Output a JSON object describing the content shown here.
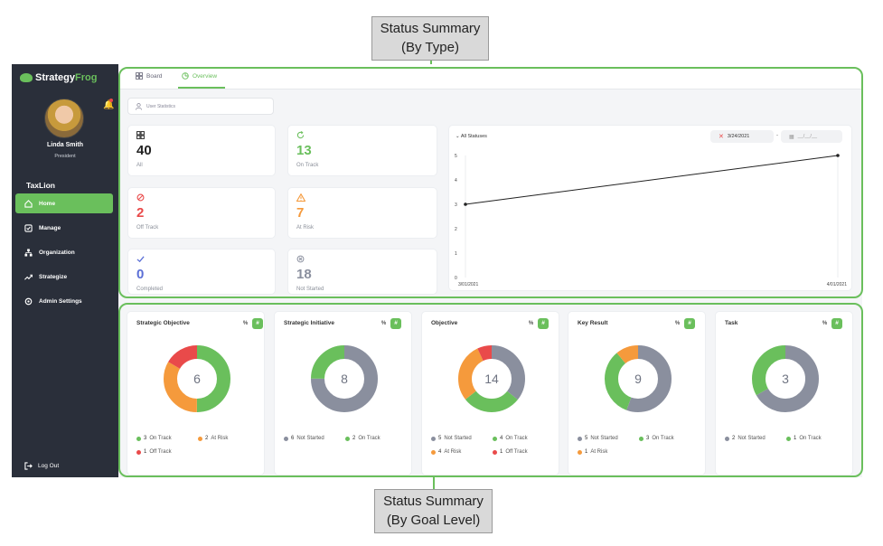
{
  "callouts": {
    "top": [
      "Status Summary",
      "(By Type)"
    ],
    "bottom": [
      "Status Summary",
      "(By Goal Level)"
    ]
  },
  "colors": {
    "accent": "#6abf5c",
    "on_track": "#6abf5c",
    "at_risk": "#f59a3c",
    "off_track": "#e94a4a",
    "completed": "#5b6fd6",
    "not_started": "#8a8f9e"
  },
  "app": {
    "logo_a": "Strategy",
    "logo_b": "Frog"
  },
  "user": {
    "name": "Linda Smith",
    "role": "President"
  },
  "sidebar": {
    "org": "TaxLion",
    "items": [
      {
        "label": "Home",
        "icon": "home-icon"
      },
      {
        "label": "Manage",
        "icon": "checkbox-icon"
      },
      {
        "label": "Organization",
        "icon": "org-chart-icon"
      },
      {
        "label": "Strategize",
        "icon": "trend-icon"
      },
      {
        "label": "Admin Settings",
        "icon": "gear-icon"
      }
    ],
    "logout": "Log Out"
  },
  "tabs": [
    {
      "label": "Board",
      "icon": "grid-icon"
    },
    {
      "label": "Overview",
      "icon": "chart-icon"
    }
  ],
  "user_stats_label": "User Statistics",
  "stats": [
    {
      "value": "40",
      "label": "All",
      "icon": "grid-icon"
    },
    {
      "value": "13",
      "label": "On Track",
      "icon": "refresh-icon"
    },
    {
      "value": "2",
      "label": "Off Track",
      "icon": "ban-icon"
    },
    {
      "value": "7",
      "label": "At Risk",
      "icon": "warning-icon"
    },
    {
      "value": "0",
      "label": "Completed",
      "icon": "check-icon"
    },
    {
      "value": "18",
      "label": "Not Started",
      "icon": "x-circle-icon"
    }
  ],
  "line_chart": {
    "filter_label": "All Statuses",
    "date_from": "3/24/2021",
    "date_sep": "-",
    "date_to_placeholder": "__/__/__"
  },
  "chart_data": [
    {
      "type": "line",
      "x": [
        "3/01/2021",
        "4/01/2021"
      ],
      "series": [
        {
          "values": [
            3,
            5
          ]
        }
      ],
      "ylim": [
        0,
        5
      ],
      "yticks": [
        0,
        1,
        2,
        3,
        4,
        5
      ],
      "grid": false
    },
    {
      "type": "pie",
      "title": "Strategic Objective",
      "total": "6",
      "slices": [
        {
          "label": "On Track",
          "value": 3
        },
        {
          "label": "At Risk",
          "value": 2
        },
        {
          "label": "Off Track",
          "value": 1
        }
      ]
    },
    {
      "type": "pie",
      "title": "Strategic Initiative",
      "total": "8",
      "slices": [
        {
          "label": "Not Started",
          "value": 6
        },
        {
          "label": "On Track",
          "value": 2
        }
      ]
    },
    {
      "type": "pie",
      "title": "Objective",
      "total": "14",
      "slices": [
        {
          "label": "Not Started",
          "value": 5
        },
        {
          "label": "On Track",
          "value": 4
        },
        {
          "label": "At Risk",
          "value": 4
        },
        {
          "label": "Off Track",
          "value": 1
        }
      ]
    },
    {
      "type": "pie",
      "title": "Key Result",
      "total": "9",
      "slices": [
        {
          "label": "Not Started",
          "value": 5
        },
        {
          "label": "On Track",
          "value": 3
        },
        {
          "label": "At Risk",
          "value": 1
        }
      ]
    },
    {
      "type": "pie",
      "title": "Task",
      "total": "3",
      "slices": [
        {
          "label": "Not Started",
          "value": 2
        },
        {
          "label": "On Track",
          "value": 1
        }
      ]
    }
  ],
  "goal_toggles": {
    "pct": "%",
    "hash": "#"
  }
}
